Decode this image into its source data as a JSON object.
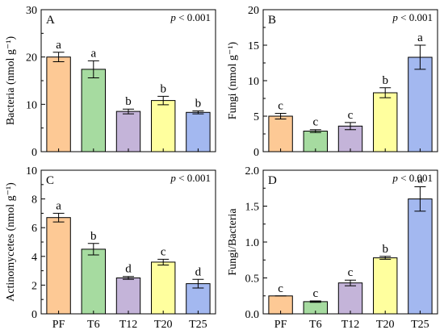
{
  "chart_data": [
    {
      "type": "bar",
      "panel_label": "A",
      "p_text": "p < 0.001",
      "categories": [
        "PF",
        "T6",
        "T12",
        "T20",
        "T25"
      ],
      "values": [
        20.0,
        17.4,
        8.5,
        10.8,
        8.3
      ],
      "errors": [
        1.0,
        1.8,
        0.5,
        0.9,
        0.3
      ],
      "letters": [
        "a",
        "a",
        "b",
        "b",
        "b"
      ],
      "ylabel": "Bacteria (nmol g⁻¹)",
      "ylim": [
        0,
        30
      ],
      "yticks": [
        0,
        10,
        20,
        30
      ],
      "show_xlabels": false
    },
    {
      "type": "bar",
      "panel_label": "B",
      "p_text": "p < 0.001",
      "categories": [
        "PF",
        "T6",
        "T12",
        "T20",
        "T25"
      ],
      "values": [
        5.0,
        2.9,
        3.6,
        8.3,
        13.3
      ],
      "errors": [
        0.4,
        0.2,
        0.5,
        0.7,
        1.7
      ],
      "letters": [
        "c",
        "c",
        "c",
        "b",
        "a"
      ],
      "ylabel": "Fungi (nmol g⁻¹)",
      "ylim": [
        0,
        20
      ],
      "yticks": [
        0,
        5,
        10,
        15,
        20
      ],
      "show_xlabels": false
    },
    {
      "type": "bar",
      "panel_label": "C",
      "p_text": "p < 0.001",
      "categories": [
        "PF",
        "T6",
        "T12",
        "T20",
        "T25"
      ],
      "values": [
        6.7,
        4.5,
        2.5,
        3.6,
        2.1
      ],
      "errors": [
        0.3,
        0.4,
        0.1,
        0.2,
        0.3
      ],
      "letters": [
        "a",
        "b",
        "d",
        "c",
        "d"
      ],
      "ylabel": "Actinomycetes (nmol g⁻¹)",
      "ylim": [
        0,
        10
      ],
      "yticks": [
        0,
        2,
        4,
        6,
        8,
        10
      ],
      "show_xlabels": true
    },
    {
      "type": "bar",
      "panel_label": "D",
      "p_text": "p < 0.001",
      "categories": [
        "PF",
        "T6",
        "T12",
        "T20",
        "T25"
      ],
      "values": [
        0.25,
        0.17,
        0.43,
        0.78,
        1.6
      ],
      "errors": [
        0.0,
        0.01,
        0.04,
        0.02,
        0.17
      ],
      "letters": [
        "c",
        "c",
        "c",
        "b",
        "a"
      ],
      "ylabel": "Fungi/Bacteria",
      "ylim": [
        0,
        2.0
      ],
      "yticks": [
        "0.0",
        "0.5",
        "1.0",
        "1.5",
        "2.0"
      ],
      "show_xlabels": true
    }
  ],
  "bar_colors": [
    "#FDC995",
    "#A6DBA0",
    "#C4B4D9",
    "#FFFF9E",
    "#A3B8F0"
  ]
}
